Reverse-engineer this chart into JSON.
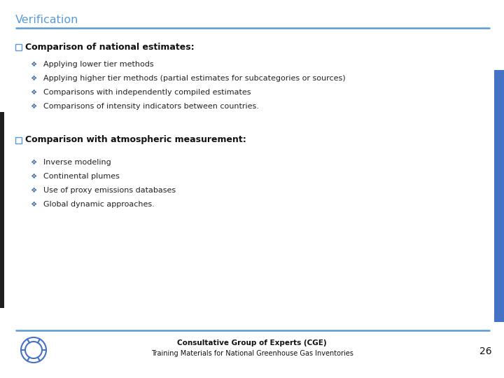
{
  "title": "Verification",
  "title_color": "#5B9BD5",
  "separator_color": "#5B9BD5",
  "background_color": "#FFFFFF",
  "section1_header": "Comparison of national estimates:",
  "section1_bullets": [
    "Applying lower tier methods",
    "Applying higher tier methods (partial estimates for subcategories or sources)",
    "Comparisons with independently compiled estimates",
    "Comparisons of intensity indicators between countries."
  ],
  "section2_header": "Comparison with atmospheric measurement:",
  "section2_bullets": [
    "Inverse modeling",
    "Continental plumes",
    "Use of proxy emissions databases",
    "Global dynamic approaches."
  ],
  "footer_line1": "Consultative Group of Experts (CGE)",
  "footer_line2": "Training Materials for National Greenhouse Gas Inventories",
  "page_number": "26",
  "side_bar_color": "#4472C4",
  "left_bar_color": "#1F1F1F",
  "header_font_size": 9.0,
  "bullet_font_size": 8.0,
  "footer_font_size": 7.5,
  "title_font_size": 11.5,
  "sq_color": "#5B9BD5"
}
